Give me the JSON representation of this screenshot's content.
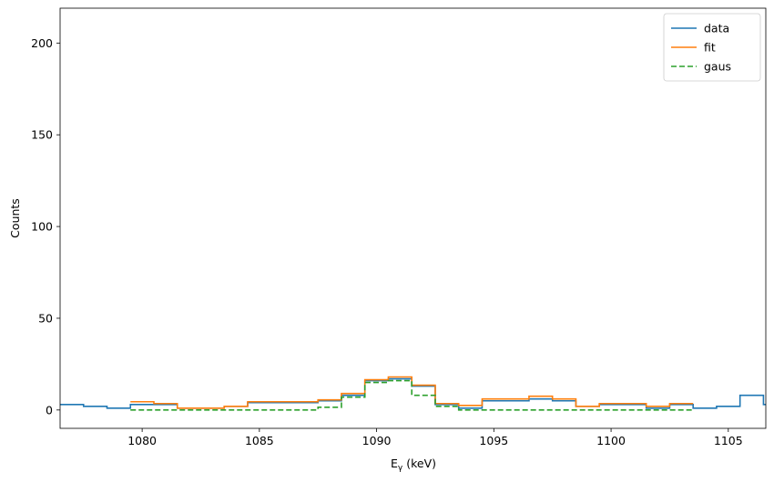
{
  "chart_data": {
    "type": "line",
    "drawstyle": "steps-mid",
    "xlabel": "E",
    "xlabel_sub": "γ",
    "xlabel_unit": "(keV)",
    "ylabel": "Counts",
    "xlim": [
      1076.5,
      1106.6
    ],
    "ylim": [
      -10,
      219
    ],
    "xticks": [
      1080,
      1085,
      1090,
      1095,
      1100,
      1105
    ],
    "yticks": [
      0,
      50,
      100,
      150,
      200
    ],
    "legend_position": "top-right",
    "grid": false,
    "series": [
      {
        "name": "data",
        "color": "#1f77b4",
        "dash": "",
        "x": [
          1076,
          1077,
          1078,
          1079,
          1080,
          1081,
          1082,
          1083,
          1084,
          1085,
          1086,
          1087,
          1088,
          1089,
          1090,
          1091,
          1092,
          1093,
          1094,
          1095,
          1096,
          1097,
          1098,
          1099,
          1100,
          1101,
          1102,
          1103,
          1104,
          1105,
          1106,
          1107
        ],
        "y": [
          3,
          3,
          2,
          1,
          3,
          3,
          1,
          1,
          2,
          4,
          4,
          4,
          5,
          8,
          16,
          17,
          13,
          3,
          1,
          5,
          5,
          6,
          5,
          2,
          3,
          3,
          1,
          3,
          1,
          2,
          8,
          3
        ]
      },
      {
        "name": "fit",
        "color": "#ff7f0e",
        "dash": "",
        "x": [
          1080,
          1081,
          1082,
          1083,
          1084,
          1085,
          1086,
          1087,
          1088,
          1089,
          1090,
          1091,
          1092,
          1093,
          1094,
          1095,
          1096,
          1097,
          1098,
          1099,
          1100,
          1101,
          1102,
          1103
        ],
        "y": [
          4.5,
          3.5,
          1,
          1,
          2,
          4.5,
          4.5,
          4.5,
          5.5,
          9,
          16.5,
          18,
          13.5,
          3.5,
          2.5,
          6,
          6,
          7.5,
          6,
          2,
          3.5,
          3.5,
          2,
          3.5
        ]
      },
      {
        "name": "gaus",
        "color": "#2ca02c",
        "dash": "6,3",
        "x": [
          1080,
          1081,
          1082,
          1083,
          1084,
          1085,
          1086,
          1087,
          1088,
          1089,
          1090,
          1091,
          1092,
          1093,
          1094,
          1095,
          1096,
          1097,
          1098,
          1099,
          1100,
          1101,
          1102,
          1103
        ],
        "y": [
          0,
          0,
          0,
          0,
          0,
          0,
          0,
          0,
          1.5,
          7,
          15,
          16,
          8,
          2,
          0,
          0,
          0,
          0,
          0,
          0,
          0,
          0,
          0,
          0
        ]
      }
    ]
  }
}
